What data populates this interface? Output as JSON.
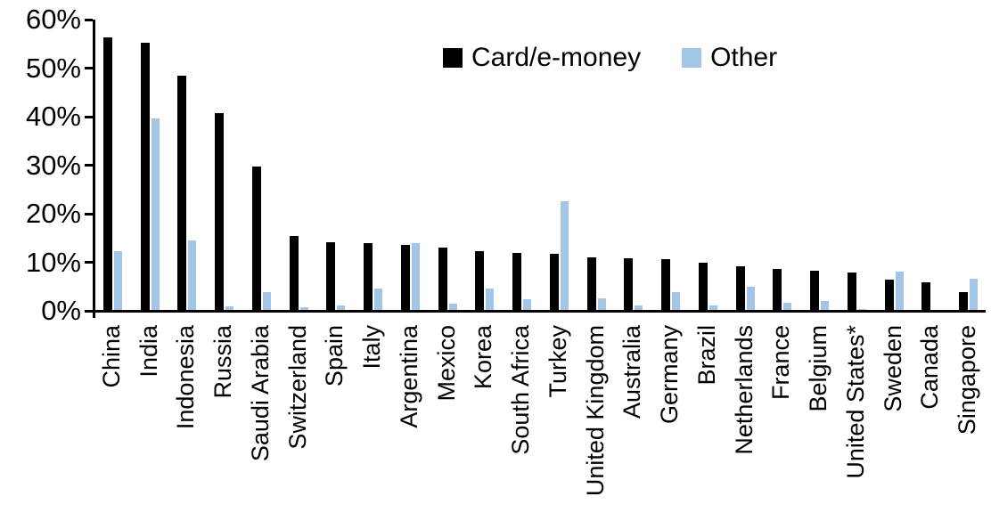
{
  "legend": {
    "card_label": "Card/e-money",
    "other_label": "Other"
  },
  "colors": {
    "card": "#000000",
    "other": "#A3C6E8"
  },
  "y_axis": {
    "tick_labels": [
      "60%",
      "50%",
      "40%",
      "30%",
      "20%",
      "10%",
      "0%"
    ],
    "min": 0,
    "max": 60,
    "step": 10
  },
  "chart_data": {
    "type": "bar",
    "title": "",
    "xlabel": "",
    "ylabel": "",
    "ylim": [
      0,
      60
    ],
    "grid": false,
    "legend_position": "top-center",
    "categories": [
      "China",
      "India",
      "Indonesia",
      "Russia",
      "Saudi Arabia",
      "Switzerland",
      "Spain",
      "Italy",
      "Argentina",
      "Mexico",
      "Korea",
      "South Africa",
      "Turkey",
      "United Kingdom",
      "Australia",
      "Germany",
      "Brazil",
      "Netherlands",
      "France",
      "Belgium",
      "United States*",
      "Sweden",
      "Canada",
      "Singapore"
    ],
    "series": [
      {
        "name": "Card/e-money",
        "color": "#000000",
        "values": [
          56.4,
          55.3,
          48.4,
          40.7,
          29.8,
          15.5,
          14.1,
          14.0,
          13.5,
          13.1,
          12.3,
          11.9,
          11.7,
          11.0,
          10.8,
          10.6,
          9.9,
          9.2,
          8.7,
          8.3,
          7.9,
          6.5,
          5.8,
          3.8
        ]
      },
      {
        "name": "Other",
        "color": "#A3C6E8",
        "values": [
          12.3,
          39.7,
          14.5,
          1.0,
          3.9,
          0.8,
          1.1,
          4.6,
          14.0,
          1.5,
          4.6,
          2.4,
          22.6,
          2.5,
          1.2,
          3.9,
          1.2,
          5.0,
          1.7,
          2.1,
          0.4,
          8.1,
          0,
          6.7
        ]
      }
    ]
  }
}
